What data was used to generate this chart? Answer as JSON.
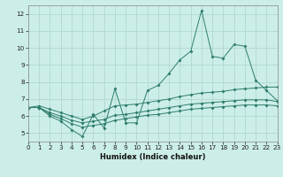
{
  "xlabel": "Humidex (Indice chaleur)",
  "x_values": [
    0,
    1,
    2,
    3,
    4,
    5,
    6,
    7,
    8,
    9,
    10,
    11,
    12,
    13,
    14,
    15,
    16,
    17,
    18,
    19,
    20,
    21,
    22,
    23
  ],
  "line1": [
    6.5,
    6.5,
    6.0,
    5.7,
    5.2,
    4.8,
    6.1,
    5.3,
    7.6,
    5.6,
    5.6,
    7.5,
    7.8,
    8.5,
    9.3,
    9.8,
    12.2,
    9.5,
    9.4,
    10.2,
    10.1,
    8.1,
    7.5,
    6.9
  ],
  "line2": [
    6.5,
    6.6,
    6.4,
    6.2,
    6.0,
    5.8,
    6.0,
    6.3,
    6.6,
    6.65,
    6.7,
    6.8,
    6.9,
    7.0,
    7.15,
    7.25,
    7.35,
    7.4,
    7.45,
    7.55,
    7.6,
    7.65,
    7.7,
    7.7
  ],
  "line3": [
    6.5,
    6.5,
    6.2,
    6.0,
    5.75,
    5.6,
    5.7,
    5.8,
    6.05,
    6.1,
    6.2,
    6.3,
    6.4,
    6.5,
    6.6,
    6.7,
    6.75,
    6.8,
    6.85,
    6.9,
    6.95,
    6.95,
    6.95,
    6.85
  ],
  "line4": [
    6.5,
    6.5,
    6.1,
    5.85,
    5.55,
    5.35,
    5.45,
    5.55,
    5.75,
    5.85,
    5.95,
    6.05,
    6.1,
    6.2,
    6.3,
    6.4,
    6.45,
    6.5,
    6.55,
    6.6,
    6.65,
    6.65,
    6.65,
    6.6
  ],
  "line_color": "#2e7d6e",
  "bg_color": "#cceee8",
  "grid_major_color": "#aad4cc",
  "grid_minor_color": "#bbddd8",
  "ylim": [
    4.5,
    12.5
  ],
  "xlim": [
    0,
    23
  ],
  "yticks": [
    5,
    6,
    7,
    8,
    9,
    10,
    11,
    12
  ],
  "xticks": [
    0,
    1,
    2,
    3,
    4,
    5,
    6,
    7,
    8,
    9,
    10,
    11,
    12,
    13,
    14,
    15,
    16,
    17,
    18,
    19,
    20,
    21,
    22,
    23
  ],
  "xlabel_fontsize": 6.0,
  "tick_fontsize": 5.2
}
